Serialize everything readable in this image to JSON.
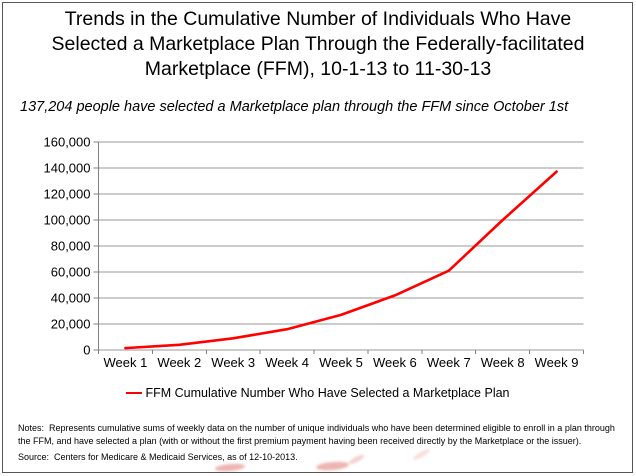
{
  "page": {
    "title_lines": [
      "Trends in the Cumulative Number of Individuals Who Have",
      "Selected a Marketplace Plan Through the Federally-facilitated",
      "Marketplace (FFM), 10-1-13 to 11-30-13"
    ],
    "subtitle": "137,204 people have selected a Marketplace plan through the FFM since October 1st",
    "notes": "Notes:  Represents cumulative sums of weekly data on the number of unique individuals who have been determined eligible to enroll in a plan through the FFM, and have selected a plan (with or without the first premium payment having been received directly by the Marketplace or the issuer).",
    "source": "Source:  Centers for Medicare & Medicaid Services, as of 12-10-2013."
  },
  "chart_data": {
    "type": "line",
    "title": "Trends in the Cumulative Number of Individuals Who Have Selected a Marketplace Plan Through the Federally-facilitated Marketplace (FFM), 10-1-13 to 11-30-13",
    "categories": [
      "Week 1",
      "Week 2",
      "Week 3",
      "Week 4",
      "Week 5",
      "Week 6",
      "Week 7",
      "Week 8",
      "Week 9"
    ],
    "series": [
      {
        "name": "FFM Cumulative Number Who Have Selected a Marketplace Plan",
        "color": "#ff0000",
        "values": [
          1500,
          4000,
          9000,
          16000,
          27000,
          42000,
          61000,
          100000,
          137204
        ]
      }
    ],
    "xlabel": "",
    "ylabel": "",
    "ylim": [
      0,
      160000
    ],
    "ytick_step": 20000,
    "ytick_labels": [
      "0",
      "20,000",
      "40,000",
      "60,000",
      "80,000",
      "100,000",
      "120,000",
      "140,000",
      "160,000"
    ],
    "grid": true,
    "legend_position": "bottom",
    "gridline_color": "#989898",
    "axis_color": "#808080"
  }
}
